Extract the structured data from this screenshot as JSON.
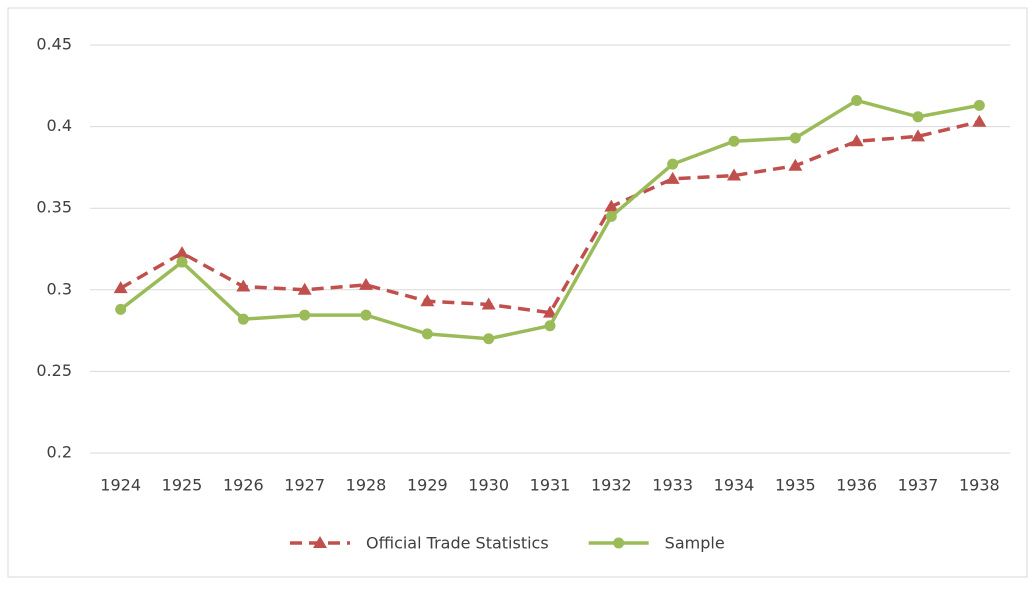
{
  "chart_data": {
    "type": "line",
    "categories": [
      "1924",
      "1925",
      "1926",
      "1927",
      "1928",
      "1929",
      "1930",
      "1931",
      "1932",
      "1933",
      "1934",
      "1935",
      "1936",
      "1937",
      "1938"
    ],
    "series": [
      {
        "name": "Official Trade Statistics",
        "color": "#c0504d",
        "dash": true,
        "marker": "triangle",
        "values": [
          0.301,
          0.3225,
          0.302,
          0.3,
          0.303,
          0.293,
          0.291,
          0.286,
          0.351,
          0.368,
          0.37,
          0.376,
          0.391,
          0.394,
          0.403
        ]
      },
      {
        "name": "Sample",
        "color": "#9bbb59",
        "dash": false,
        "marker": "circle",
        "values": [
          0.288,
          0.317,
          0.282,
          0.2845,
          0.2845,
          0.273,
          0.27,
          0.278,
          0.345,
          0.377,
          0.391,
          0.393,
          0.416,
          0.406,
          0.413
        ]
      }
    ],
    "ylim": [
      0.2,
      0.45
    ],
    "yticks": [
      0.2,
      0.25,
      0.3,
      0.35,
      0.4,
      0.45
    ],
    "grid": true,
    "legend": "bottom"
  }
}
